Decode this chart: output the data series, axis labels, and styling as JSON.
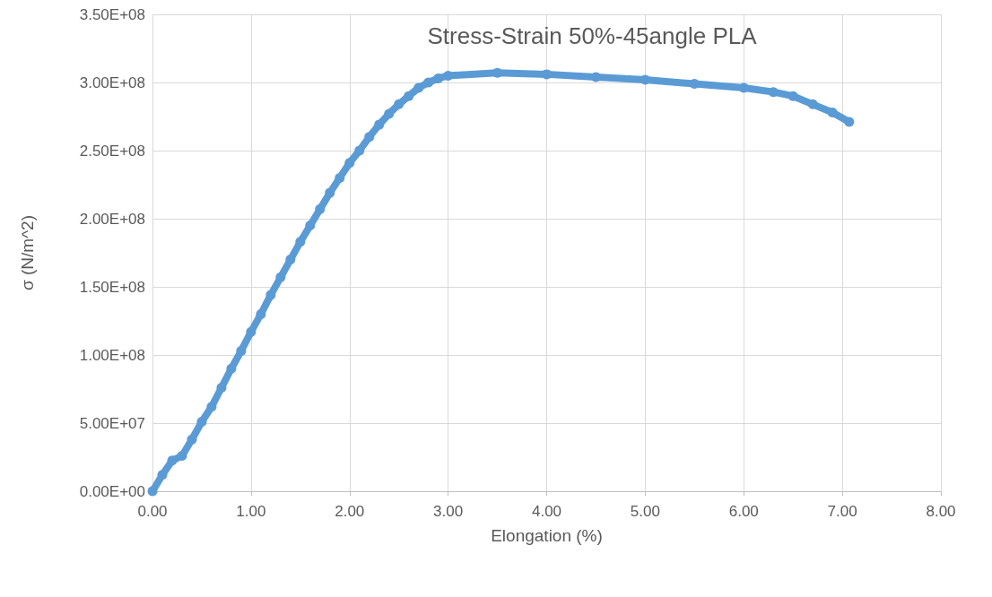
{
  "chart_data": {
    "type": "line",
    "title": "Stress-Strain 50%-45angle PLA",
    "xlabel": "Elongation (%)",
    "ylabel": "σ (N/m^2)",
    "x": [
      0,
      0.1,
      0.2,
      0.3,
      0.4,
      0.5,
      0.6,
      0.7,
      0.8,
      0.9,
      1.0,
      1.1,
      1.2,
      1.3,
      1.4,
      1.5,
      1.6,
      1.7,
      1.8,
      1.9,
      2.0,
      2.1,
      2.2,
      2.3,
      2.4,
      2.5,
      2.6,
      2.7,
      2.8,
      2.9,
      3.0,
      3.5,
      4.0,
      4.5,
      5.0,
      5.5,
      6.0,
      6.3,
      6.5,
      6.7,
      6.9,
      7.07
    ],
    "series": [
      {
        "color": "#5b9bd5",
        "values": [
          0,
          12000000,
          22500000,
          26000000,
          38000000,
          51000000,
          62000000,
          76000000,
          90000000,
          103000000,
          117000000,
          130000000,
          144000000,
          157000000,
          170000000,
          183000000,
          195000000,
          207000000,
          219000000,
          230000000,
          241000000,
          250000000,
          260000000,
          269000000,
          277000000,
          284000000,
          290000000,
          296000000,
          300000000,
          303000000,
          305000000,
          307000000,
          306000000,
          304000000,
          302000000,
          299000000,
          296000000,
          293000000,
          290000000,
          284000000,
          278000000,
          271000000
        ]
      }
    ],
    "xlim": [
      0,
      8
    ],
    "ylim": [
      0,
      350000000
    ],
    "xticks": [
      {
        "value": 0,
        "label": "0.00"
      },
      {
        "value": 1,
        "label": "1.00"
      },
      {
        "value": 2,
        "label": "2.00"
      },
      {
        "value": 3,
        "label": "3.00"
      },
      {
        "value": 4,
        "label": "4.00"
      },
      {
        "value": 5,
        "label": "5.00"
      },
      {
        "value": 6,
        "label": "6.00"
      },
      {
        "value": 7,
        "label": "7.00"
      },
      {
        "value": 8,
        "label": "8.00"
      }
    ],
    "yticks": [
      {
        "value": 0,
        "label": "0.00E+00"
      },
      {
        "value": 50000000,
        "label": "5.00E+07"
      },
      {
        "value": 100000000,
        "label": "1.00E+08"
      },
      {
        "value": 150000000,
        "label": "1.50E+08"
      },
      {
        "value": 200000000,
        "label": "2.00E+08"
      },
      {
        "value": 250000000,
        "label": "2.50E+08"
      },
      {
        "value": 300000000,
        "label": "3.00E+08"
      },
      {
        "value": 350000000,
        "label": "3.50E+08"
      }
    ],
    "grid": true,
    "marker": "circle",
    "line_style": "solid"
  }
}
